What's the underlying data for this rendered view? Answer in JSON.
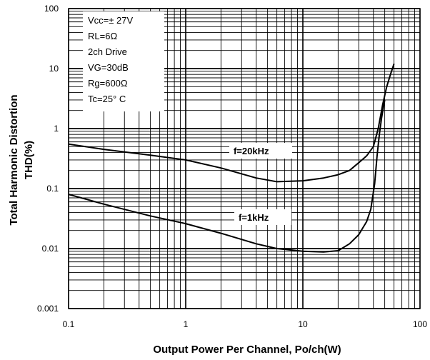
{
  "chart_data": {
    "type": "line",
    "xlabel": "Output Power Per Channel, Po/ch(W)",
    "ylabel_line1": "Total Harmonic Distortion",
    "ylabel_line2": "THD(%)",
    "x_scale": "log",
    "y_scale": "log",
    "xlim": [
      0.1,
      100
    ],
    "ylim": [
      0.001,
      100
    ],
    "grid": true,
    "x_tick_labels": [
      "0.1",
      "1",
      "10",
      "100"
    ],
    "y_tick_labels": [
      "100",
      "10",
      "1",
      "0.1",
      "0.01",
      "0.001"
    ],
    "conditions": [
      "Vcc=± 27V",
      "RL=6Ω",
      "2ch Drive",
      "VG=30dB",
      "Rg=600Ω",
      "Tc=25° C"
    ],
    "series": [
      {
        "name": "f=20kHz",
        "x": [
          0.1,
          0.2,
          0.5,
          1,
          2,
          4,
          6,
          10,
          15,
          20,
          25,
          30,
          35,
          40,
          44,
          48,
          52,
          56,
          60
        ],
        "y": [
          0.55,
          0.45,
          0.36,
          0.3,
          0.22,
          0.15,
          0.13,
          0.135,
          0.15,
          0.17,
          0.2,
          0.27,
          0.35,
          0.5,
          1.0,
          2.5,
          5.0,
          8.0,
          12.0
        ]
      },
      {
        "name": "f=1kHz",
        "x": [
          0.1,
          0.2,
          0.5,
          1,
          2,
          4,
          6,
          10,
          15,
          20,
          25,
          30,
          35,
          38,
          41,
          43,
          45,
          47,
          50
        ],
        "y": [
          0.08,
          0.055,
          0.035,
          0.026,
          0.018,
          0.012,
          0.01,
          0.009,
          0.0088,
          0.0092,
          0.012,
          0.017,
          0.028,
          0.045,
          0.12,
          0.35,
          0.8,
          1.5,
          3.0
        ]
      }
    ]
  }
}
